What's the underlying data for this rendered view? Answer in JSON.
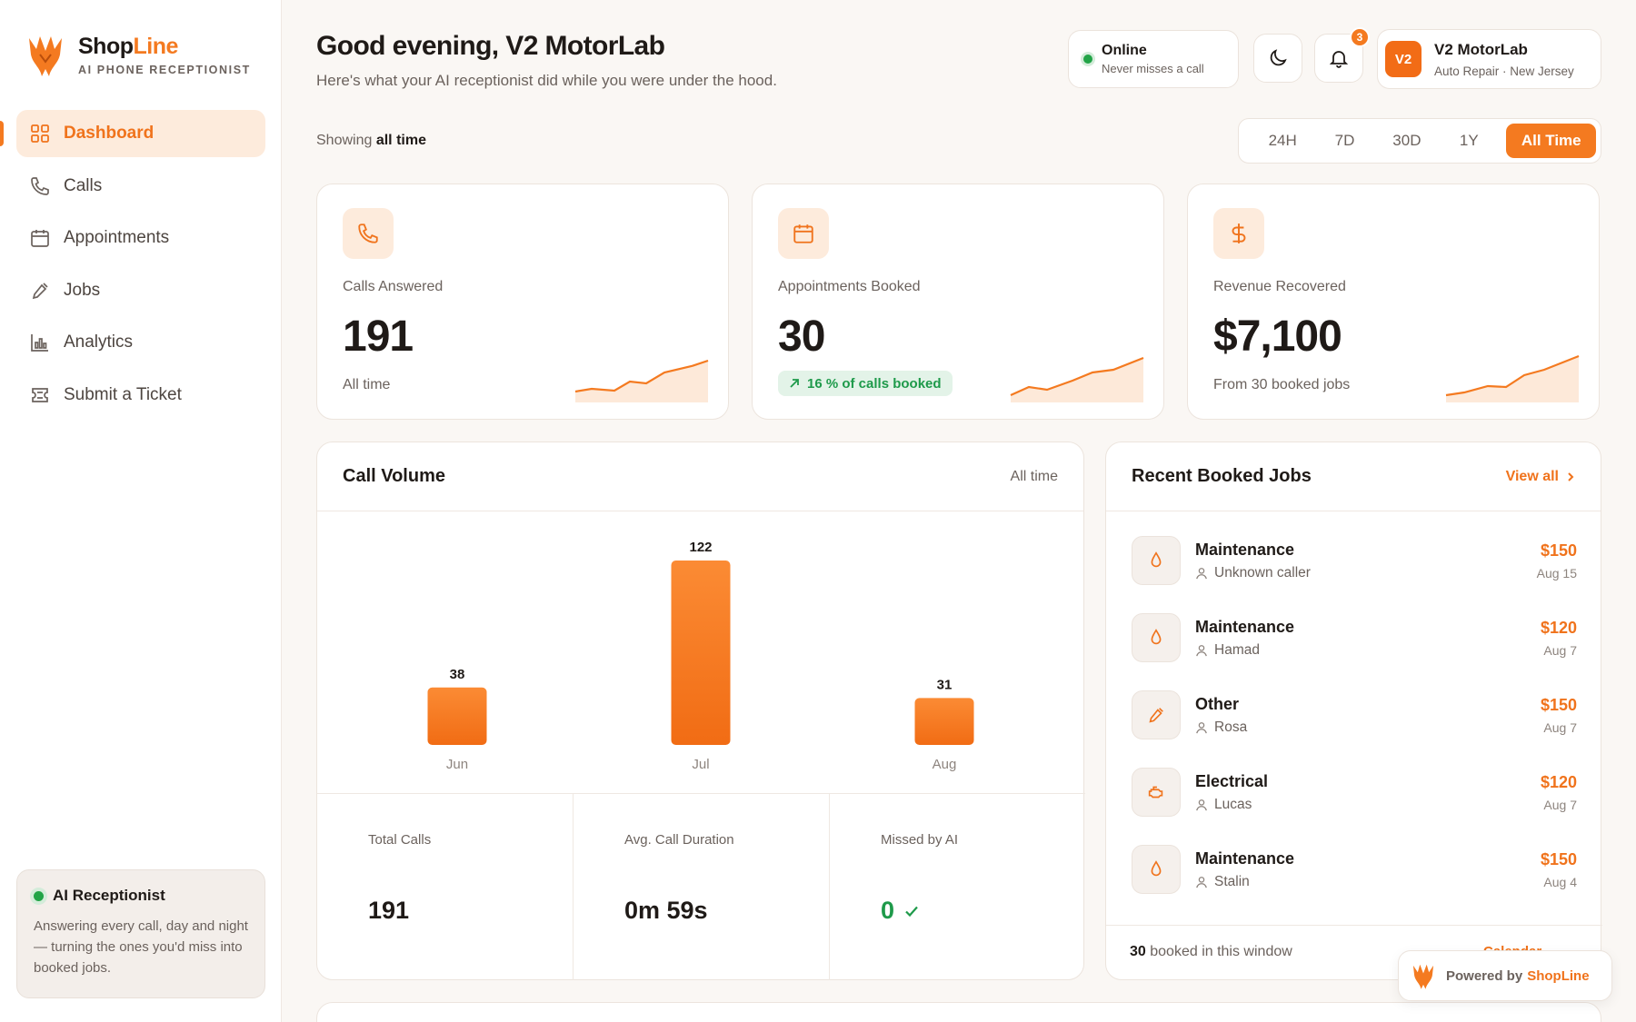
{
  "brand": {
    "name_part1": "Shop",
    "name_part2": "Line",
    "subtitle": "AI PHONE RECEPTIONIST"
  },
  "sidebar": {
    "items": [
      {
        "label": "Dashboard",
        "icon": "grid-icon",
        "active": true
      },
      {
        "label": "Calls",
        "icon": "phone-icon"
      },
      {
        "label": "Appointments",
        "icon": "calendar-icon"
      },
      {
        "label": "Jobs",
        "icon": "wrench-icon"
      },
      {
        "label": "Analytics",
        "icon": "bar-chart-icon"
      },
      {
        "label": "Submit a Ticket",
        "icon": "ticket-icon"
      }
    ],
    "ai_card": {
      "title": "AI Receptionist",
      "text": "Answering every call, day and night — turning the ones you'd miss into booked jobs."
    }
  },
  "header": {
    "title": "Good evening, V2 MotorLab",
    "subtitle": "Here's what your AI receptionist did while you were under the hood.",
    "status": {
      "label": "Online",
      "sub": "Never misses a call"
    },
    "notifications_count": "3",
    "account": {
      "initials": "V2",
      "name": "V2 MotorLab",
      "sub": "Auto Repair · New Jersey"
    }
  },
  "filter": {
    "showing_prefix": "Showing",
    "showing_value": "all time",
    "ranges": [
      "24H",
      "7D",
      "30D",
      "1Y",
      "All Time"
    ],
    "active_range": "All Time"
  },
  "stats": [
    {
      "label": "Calls Answered",
      "value": "191",
      "foot": "All time",
      "icon": "phone-icon"
    },
    {
      "label": "Appointments Booked",
      "value": "30",
      "chip": "16  % of calls booked",
      "icon": "calendar-icon"
    },
    {
      "label": "Revenue Recovered",
      "value": "$7,100",
      "foot": "From 30 booked jobs",
      "icon": "dollar-icon"
    }
  ],
  "call_volume": {
    "title": "Call Volume",
    "range": "All time",
    "stats": [
      {
        "label": "Total Calls",
        "value": "191"
      },
      {
        "label": "Avg. Call Duration",
        "value": "0m 59s"
      },
      {
        "label": "Missed by AI",
        "value": "0"
      }
    ]
  },
  "chart_data": {
    "type": "bar",
    "categories": [
      "Jun",
      "Jul",
      "Aug"
    ],
    "values": [
      38,
      122,
      31
    ],
    "title": "Call Volume",
    "xlabel": "",
    "ylabel": "",
    "ylim": [
      0,
      122
    ],
    "grid": false,
    "color": "#f47a20"
  },
  "jobs": {
    "title": "Recent Booked Jobs",
    "view_all": "View all",
    "items": [
      {
        "type": "Maintenance",
        "caller": "Unknown caller",
        "price": "$150",
        "date": "Aug 15",
        "icon": "drop-icon"
      },
      {
        "type": "Maintenance",
        "caller": "Hamad",
        "price": "$120",
        "date": "Aug 7",
        "icon": "drop-icon"
      },
      {
        "type": "Other",
        "caller": "Rosa",
        "price": "$150",
        "date": "Aug 7",
        "icon": "wrench-icon"
      },
      {
        "type": "Electrical",
        "caller": "Lucas",
        "price": "$120",
        "date": "Aug 7",
        "icon": "engine-icon"
      },
      {
        "type": "Maintenance",
        "caller": "Stalin",
        "price": "$150",
        "date": "Aug 4",
        "icon": "drop-icon"
      }
    ],
    "footer_count": "30",
    "footer_text": "booked in this window",
    "calendar_link": "Calendar"
  },
  "powered": {
    "prefix": "Powered by",
    "brand": "ShopLine"
  },
  "colors": {
    "accent": "#f47a20",
    "success": "#22a447"
  }
}
